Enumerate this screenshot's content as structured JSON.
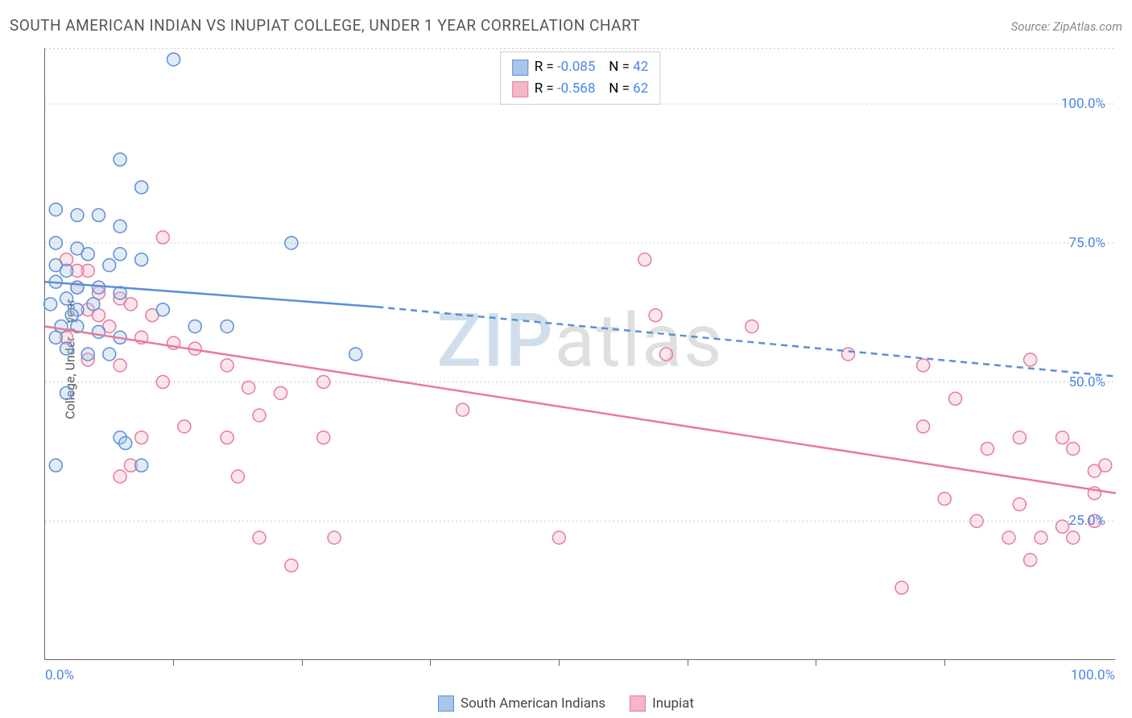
{
  "title": "SOUTH AMERICAN INDIAN VS INUPIAT COLLEGE, UNDER 1 YEAR CORRELATION CHART",
  "source_label": "Source: ZipAtlas.com",
  "y_axis_label": "College, Under 1 year",
  "watermark": {
    "z": "ZIP",
    "rest": "atlas"
  },
  "chart": {
    "type": "scatter",
    "xlim": [
      0,
      100
    ],
    "ylim": [
      0,
      110
    ],
    "background_color": "#ffffff",
    "grid_color": "#cccccc",
    "axis_color": "#666666",
    "label_fontsize": 16,
    "tick_fontsize": 17,
    "tick_label_color": "#4a86e8",
    "y_ticks": [
      25,
      50,
      75,
      100
    ],
    "y_tick_labels": [
      "25.0%",
      "50.0%",
      "75.0%",
      "100.0%"
    ],
    "x_ticks_minor": [
      12,
      24,
      36,
      48,
      60,
      72,
      84
    ],
    "x_extent_labels": {
      "left": "0.0%",
      "right": "100.0%"
    },
    "marker_radius": 8,
    "marker_stroke_width": 1.5,
    "marker_fill_opacity": 0.35,
    "line_width": 2.5
  },
  "series": {
    "sai": {
      "label": "South American Indians",
      "color_stroke": "#5b8fd6",
      "color_fill": "#a9c6ea",
      "R": "-0.085",
      "N": "42",
      "trend": {
        "solid": {
          "x1": 0,
          "y1": 68,
          "x2": 31,
          "y2": 63.5
        },
        "dashed": {
          "x1": 31,
          "y1": 63.5,
          "x2": 100,
          "y2": 51
        }
      },
      "points": [
        [
          12,
          108
        ],
        [
          7,
          90
        ],
        [
          9,
          85
        ],
        [
          1,
          81
        ],
        [
          3,
          80
        ],
        [
          5,
          80
        ],
        [
          7,
          78
        ],
        [
          1,
          75
        ],
        [
          3,
          74
        ],
        [
          4,
          73
        ],
        [
          7,
          73
        ],
        [
          1,
          71
        ],
        [
          2,
          70
        ],
        [
          6,
          71
        ],
        [
          9,
          72
        ],
        [
          23,
          75
        ],
        [
          1,
          68
        ],
        [
          3,
          67
        ],
        [
          5,
          67
        ],
        [
          2,
          65
        ],
        [
          7,
          66
        ],
        [
          0.5,
          64
        ],
        [
          3,
          63
        ],
        [
          11,
          63
        ],
        [
          3,
          60
        ],
        [
          5,
          59
        ],
        [
          7,
          58
        ],
        [
          14,
          60
        ],
        [
          17,
          60
        ],
        [
          4,
          55
        ],
        [
          6,
          55
        ],
        [
          29,
          55
        ],
        [
          2,
          48
        ],
        [
          7,
          40
        ],
        [
          7.5,
          39
        ],
        [
          1,
          35
        ],
        [
          9,
          35
        ],
        [
          1.5,
          60
        ],
        [
          2.5,
          62
        ],
        [
          4.5,
          64
        ],
        [
          1,
          58
        ],
        [
          2,
          56
        ]
      ]
    },
    "inu": {
      "label": "Inupiat",
      "color_stroke": "#e87b9a",
      "color_fill": "#f3b7c7",
      "R": "-0.568",
      "N": "62",
      "trend": {
        "solid": {
          "x1": 0,
          "y1": 60,
          "x2": 100,
          "y2": 30
        },
        "dashed": null
      },
      "points": [
        [
          2,
          72
        ],
        [
          4,
          70
        ],
        [
          11,
          76
        ],
        [
          3,
          67
        ],
        [
          5,
          66
        ],
        [
          7,
          65
        ],
        [
          4,
          63
        ],
        [
          8,
          64
        ],
        [
          6,
          60
        ],
        [
          9,
          58
        ],
        [
          12,
          57
        ],
        [
          4,
          54
        ],
        [
          7,
          53
        ],
        [
          14,
          56
        ],
        [
          17,
          53
        ],
        [
          11,
          50
        ],
        [
          19,
          49
        ],
        [
          22,
          48
        ],
        [
          26,
          50
        ],
        [
          9,
          40
        ],
        [
          13,
          42
        ],
        [
          17,
          40
        ],
        [
          20,
          44
        ],
        [
          26,
          40
        ],
        [
          7,
          33
        ],
        [
          8,
          35
        ],
        [
          18,
          33
        ],
        [
          20,
          22
        ],
        [
          27,
          22
        ],
        [
          23,
          17
        ],
        [
          39,
          45
        ],
        [
          48,
          22
        ],
        [
          56,
          72
        ],
        [
          57,
          62
        ],
        [
          58,
          55
        ],
        [
          66,
          60
        ],
        [
          75,
          55
        ],
        [
          82,
          53
        ],
        [
          85,
          47
        ],
        [
          92,
          54
        ],
        [
          82,
          42
        ],
        [
          91,
          40
        ],
        [
          95,
          40
        ],
        [
          88,
          38
        ],
        [
          96,
          38
        ],
        [
          84,
          29
        ],
        [
          91,
          28
        ],
        [
          98,
          30
        ],
        [
          99,
          35
        ],
        [
          98,
          34
        ],
        [
          87,
          25
        ],
        [
          90,
          22
        ],
        [
          93,
          22
        ],
        [
          96,
          22
        ],
        [
          95,
          24
        ],
        [
          98,
          25
        ],
        [
          92,
          18
        ],
        [
          80,
          13
        ],
        [
          3,
          70
        ],
        [
          5,
          62
        ],
        [
          2,
          58
        ],
        [
          10,
          62
        ]
      ]
    }
  },
  "stats_legend": {
    "r_prefix": "R = ",
    "n_prefix": "N = ",
    "value_color": "#4a86e8",
    "label_color": "#555555"
  }
}
